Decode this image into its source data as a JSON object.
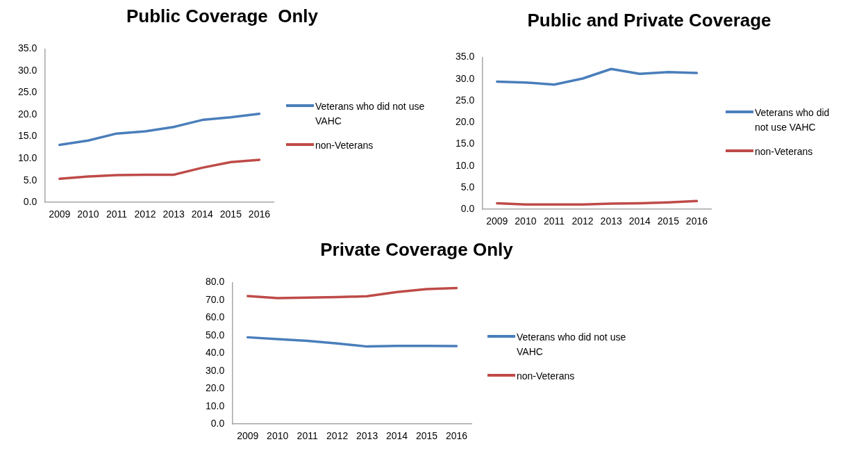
{
  "chart_data": [
    {
      "type": "line",
      "title": "Public Coverage  Only",
      "categories": [
        "2009",
        "2010",
        "2011",
        "2012",
        "2013",
        "2014",
        "2015",
        "2016"
      ],
      "series": [
        {
          "name": "Veterans who did not use VAHC",
          "color": "#4a7ebb",
          "values": [
            13.1,
            14.1,
            15.7,
            16.2,
            17.2,
            18.8,
            19.4,
            20.2
          ]
        },
        {
          "name": "non-Veterans",
          "color": "#be4b48",
          "values": [
            5.4,
            5.9,
            6.2,
            6.3,
            6.3,
            7.9,
            9.2,
            9.7
          ]
        }
      ],
      "ylim": [
        0,
        35
      ],
      "yticks": [
        {
          "value": 0,
          "label": "0.0"
        },
        {
          "value": 5,
          "label": "5.0"
        },
        {
          "value": 10,
          "label": "10.0"
        },
        {
          "value": 15,
          "label": "15.0"
        },
        {
          "value": 20,
          "label": "20.0"
        },
        {
          "value": 25,
          "label": "25.0"
        },
        {
          "value": 30,
          "label": "30.0"
        },
        {
          "value": 35,
          "label": "35.0"
        }
      ],
      "grid": false,
      "legend": "right",
      "marker": "none",
      "line_style": "solid"
    },
    {
      "type": "line",
      "title": "Public and Private Coverage",
      "categories": [
        "2009",
        "2010",
        "2011",
        "2012",
        "2013",
        "2014",
        "2015",
        "2016"
      ],
      "series": [
        {
          "name": "Veterans who did not use VAHC",
          "color": "#4a7ebb",
          "values": [
            29.4,
            29.2,
            28.7,
            30.1,
            32.3,
            31.2,
            31.6,
            31.4
          ]
        },
        {
          "name": "non-Veterans",
          "color": "#be4b48",
          "values": [
            1.4,
            1.1,
            1.1,
            1.1,
            1.3,
            1.4,
            1.6,
            1.9
          ]
        }
      ],
      "ylim": [
        0,
        35
      ],
      "yticks": [
        {
          "value": 0,
          "label": "0.0"
        },
        {
          "value": 5,
          "label": "5.0"
        },
        {
          "value": 10,
          "label": "10.0"
        },
        {
          "value": 15,
          "label": "15.0"
        },
        {
          "value": 20,
          "label": "20.0"
        },
        {
          "value": 25,
          "label": "25.0"
        },
        {
          "value": 30,
          "label": "30.0"
        },
        {
          "value": 35,
          "label": "35.0"
        }
      ],
      "grid": false,
      "legend": "right",
      "marker": "none",
      "line_style": "solid"
    },
    {
      "type": "line",
      "title": "Private Coverage Only",
      "categories": [
        "2009",
        "2010",
        "2011",
        "2012",
        "2013",
        "2014",
        "2015",
        "2016"
      ],
      "series": [
        {
          "name": "Veterans who did not use VAHC",
          "color": "#4a7ebb",
          "values": [
            49.0,
            48.0,
            47.0,
            45.5,
            43.8,
            44.1,
            44.1,
            44.0
          ]
        },
        {
          "name": "non-Veterans",
          "color": "#be4b48",
          "values": [
            72.3,
            71.1,
            71.4,
            71.7,
            72.2,
            74.6,
            76.2,
            76.8
          ]
        }
      ],
      "ylim": [
        0,
        80
      ],
      "yticks": [
        {
          "value": 0,
          "label": "0.0"
        },
        {
          "value": 10,
          "label": "10.0"
        },
        {
          "value": 20,
          "label": "20.0"
        },
        {
          "value": 30,
          "label": "30.0"
        },
        {
          "value": 40,
          "label": "40.0"
        },
        {
          "value": 50,
          "label": "50.0"
        },
        {
          "value": 60,
          "label": "60.0"
        },
        {
          "value": 70,
          "label": "70.0"
        },
        {
          "value": 80,
          "label": "80.0"
        }
      ],
      "grid": false,
      "legend": "right",
      "marker": "none",
      "line_style": "solid"
    }
  ]
}
